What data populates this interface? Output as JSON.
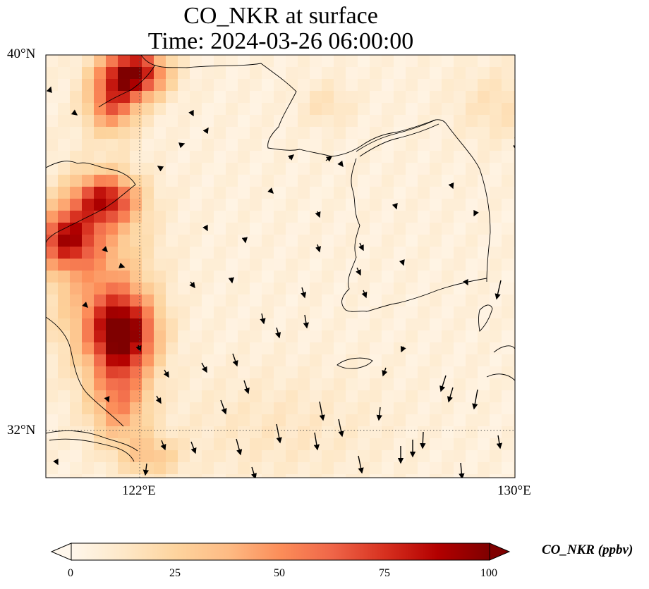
{
  "figure": {
    "title_line1": "CO_NKR at surface",
    "title_line2": "Time: 2024-03-26 06:00:00"
  },
  "axes": {
    "lat_ticks": [
      "40°N",
      "32°N"
    ],
    "lon_ticks": [
      "122°E",
      "130°E"
    ],
    "lat_range": [
      31,
      40
    ],
    "lon_range": [
      120,
      130
    ],
    "gridlines": "dotted"
  },
  "colorbar": {
    "label": "CO_NKR (ppbv)",
    "ticks": [
      "0",
      "25",
      "50",
      "75",
      "100"
    ],
    "range": [
      0,
      100
    ],
    "extend": "both",
    "colormap": "OrRd",
    "colors": [
      "#fff7ec",
      "#fee8c8",
      "#fdd49e",
      "#fdbb84",
      "#fc8d59",
      "#ef6548",
      "#d7301f",
      "#b30000",
      "#7f0000"
    ]
  }
}
